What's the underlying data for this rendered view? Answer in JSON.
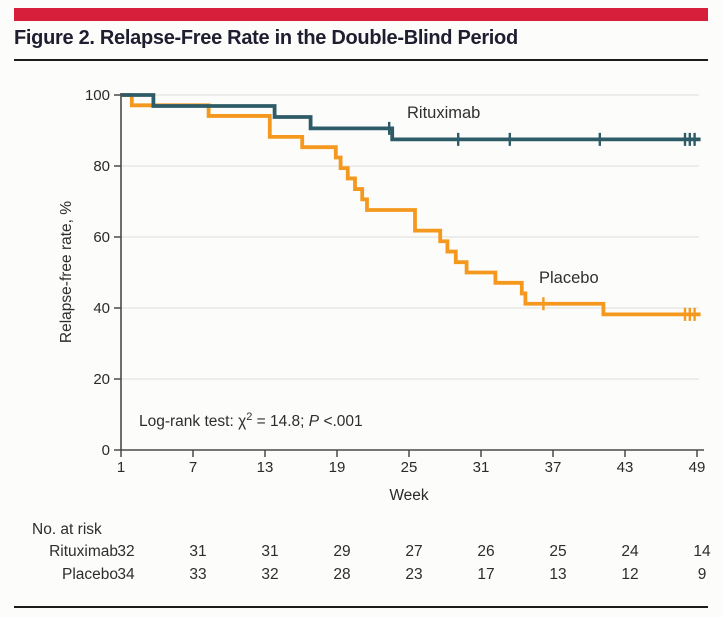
{
  "header": {
    "title": "Figure 2. Relapse-Free Rate in the Double-Blind Period",
    "accent_color": "#D71F3B"
  },
  "chart_data": {
    "type": "line",
    "subtype": "kaplan-meier-step",
    "xlabel": "Week",
    "ylabel": "Relapse-free rate, %",
    "xticks": [
      1,
      7,
      13,
      19,
      25,
      31,
      37,
      43,
      49
    ],
    "yticks": [
      0,
      20,
      40,
      60,
      80,
      100
    ],
    "xlim": [
      1,
      49.5
    ],
    "ylim": [
      0,
      100
    ],
    "grid": "horizontal",
    "grid_color": "#E4E4E1",
    "axis_color": "#4A4A4A",
    "annotation": {
      "pre": "Log-rank test: χ",
      "sup": "2",
      "mid": " = 14.8; ",
      "p_italic": "P",
      "post": " <.001"
    },
    "series": [
      {
        "name": "Rituximab",
        "color": "#2E5B68",
        "steps": [
          [
            1,
            100
          ],
          [
            3.7,
            96.9
          ],
          [
            13.8,
            93.8
          ],
          [
            16.8,
            90.6
          ],
          [
            23.6,
            87.5
          ]
        ],
        "end_week": 49.3,
        "censor_marks": [
          [
            23.35,
            90.6
          ],
          [
            29.1,
            87.5
          ],
          [
            33.4,
            87.5
          ],
          [
            40.9,
            87.5
          ],
          [
            48.0,
            87.5
          ],
          [
            48.4,
            87.5
          ],
          [
            48.8,
            87.5
          ]
        ]
      },
      {
        "name": "Placebo",
        "color": "#F5981E",
        "steps": [
          [
            1,
            100
          ],
          [
            1.9,
            97.1
          ],
          [
            8.3,
            94.1
          ],
          [
            13.4,
            88.2
          ],
          [
            16.1,
            85.3
          ],
          [
            18.9,
            82.4
          ],
          [
            19.3,
            79.4
          ],
          [
            19.9,
            76.5
          ],
          [
            20.5,
            73.5
          ],
          [
            21.1,
            70.6
          ],
          [
            21.5,
            67.6
          ],
          [
            25.5,
            61.8
          ],
          [
            27.6,
            58.8
          ],
          [
            28.2,
            55.9
          ],
          [
            28.9,
            52.9
          ],
          [
            29.8,
            50.0
          ],
          [
            32.2,
            47.1
          ],
          [
            34.4,
            44.1
          ],
          [
            34.7,
            41.2
          ],
          [
            41.2,
            38.2
          ]
        ],
        "end_week": 49.3,
        "censor_marks": [
          [
            36.2,
            41.2
          ],
          [
            48.0,
            38.2
          ],
          [
            48.4,
            38.2
          ],
          [
            48.8,
            38.2
          ]
        ]
      }
    ],
    "risk_table": {
      "title": "No. at risk",
      "weeks": [
        1,
        7,
        13,
        19,
        25,
        31,
        37,
        43,
        49
      ],
      "rows": [
        {
          "name": "Rituximab",
          "values": [
            32,
            31,
            31,
            29,
            27,
            26,
            25,
            24,
            14
          ]
        },
        {
          "name": "Placebo",
          "values": [
            34,
            33,
            32,
            28,
            23,
            17,
            13,
            12,
            9
          ]
        }
      ]
    }
  }
}
